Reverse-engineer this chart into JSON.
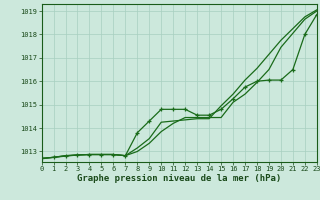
{
  "x": [
    0,
    1,
    2,
    3,
    4,
    5,
    6,
    7,
    8,
    9,
    10,
    11,
    12,
    13,
    14,
    15,
    16,
    17,
    18,
    19,
    20,
    21,
    22,
    23
  ],
  "series": [
    {
      "label": "line1_smooth",
      "y": [
        1012.7,
        1012.75,
        1012.8,
        1012.85,
        1012.87,
        1012.87,
        1012.87,
        1012.82,
        1013.0,
        1013.35,
        1013.85,
        1014.2,
        1014.45,
        1014.45,
        1014.45,
        1014.45,
        1015.1,
        1015.45,
        1015.95,
        1016.5,
        1017.45,
        1018.05,
        1018.65,
        1019.0
      ],
      "color": "#1a6b1a",
      "linewidth": 0.9,
      "marker": null,
      "linestyle": "-"
    },
    {
      "label": "line2_smooth",
      "y": [
        1012.7,
        1012.75,
        1012.82,
        1012.85,
        1012.87,
        1012.87,
        1012.87,
        1012.82,
        1013.15,
        1013.55,
        1014.25,
        1014.3,
        1014.35,
        1014.4,
        1014.4,
        1014.95,
        1015.45,
        1016.05,
        1016.55,
        1017.15,
        1017.75,
        1018.25,
        1018.75,
        1019.05
      ],
      "color": "#1a6b1a",
      "linewidth": 0.9,
      "marker": null,
      "linestyle": "-"
    },
    {
      "label": "line3_markers",
      "y": [
        1012.7,
        1012.75,
        1012.82,
        1012.85,
        1012.87,
        1012.87,
        1012.87,
        1012.82,
        1013.8,
        1014.3,
        1014.8,
        1014.8,
        1014.8,
        1014.55,
        1014.55,
        1014.8,
        1015.25,
        1015.75,
        1016.0,
        1016.05,
        1016.05,
        1016.5,
        1018.0,
        1018.85
      ],
      "color": "#1a6b1a",
      "linewidth": 0.9,
      "marker": "+",
      "markersize": 3.5,
      "markeredgewidth": 0.9,
      "linestyle": "-"
    }
  ],
  "xlim": [
    0,
    23
  ],
  "ylim": [
    1012.55,
    1019.3
  ],
  "yticks": [
    1013,
    1014,
    1015,
    1016,
    1017,
    1018,
    1019
  ],
  "xticks": [
    0,
    1,
    2,
    3,
    4,
    5,
    6,
    7,
    8,
    9,
    10,
    11,
    12,
    13,
    14,
    15,
    16,
    17,
    18,
    19,
    20,
    21,
    22,
    23
  ],
  "xlabel": "Graphe pression niveau de la mer (hPa)",
  "bg_color": "#cce8dc",
  "grid_color": "#a8cfc0",
  "border_color": "#1a5c1a",
  "text_color": "#1a4a1a",
  "label_fontsize": 6.5,
  "tick_fontsize": 5.0,
  "tick_color": "#1a4a1a"
}
